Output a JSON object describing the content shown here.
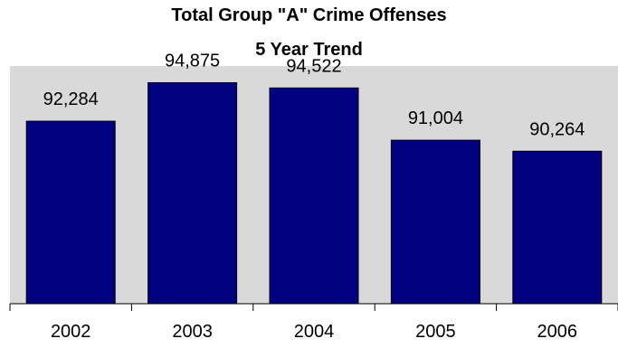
{
  "chart_data": {
    "type": "bar",
    "title": "Total Group \"A\" Crime Offenses",
    "subtitle": "5 Year Trend",
    "categories": [
      "2002",
      "2003",
      "2004",
      "2005",
      "2006"
    ],
    "values": [
      92284,
      94875,
      94522,
      91004,
      90264
    ],
    "value_labels": [
      "92,284",
      "94,875",
      "94,522",
      "91,004",
      "90,264"
    ],
    "ylim": [
      80000,
      96000
    ],
    "grid": false,
    "legend": "none",
    "colors": {
      "bar": "#000080",
      "plot_background": "#d9d9d9",
      "axis": "#000000"
    }
  }
}
